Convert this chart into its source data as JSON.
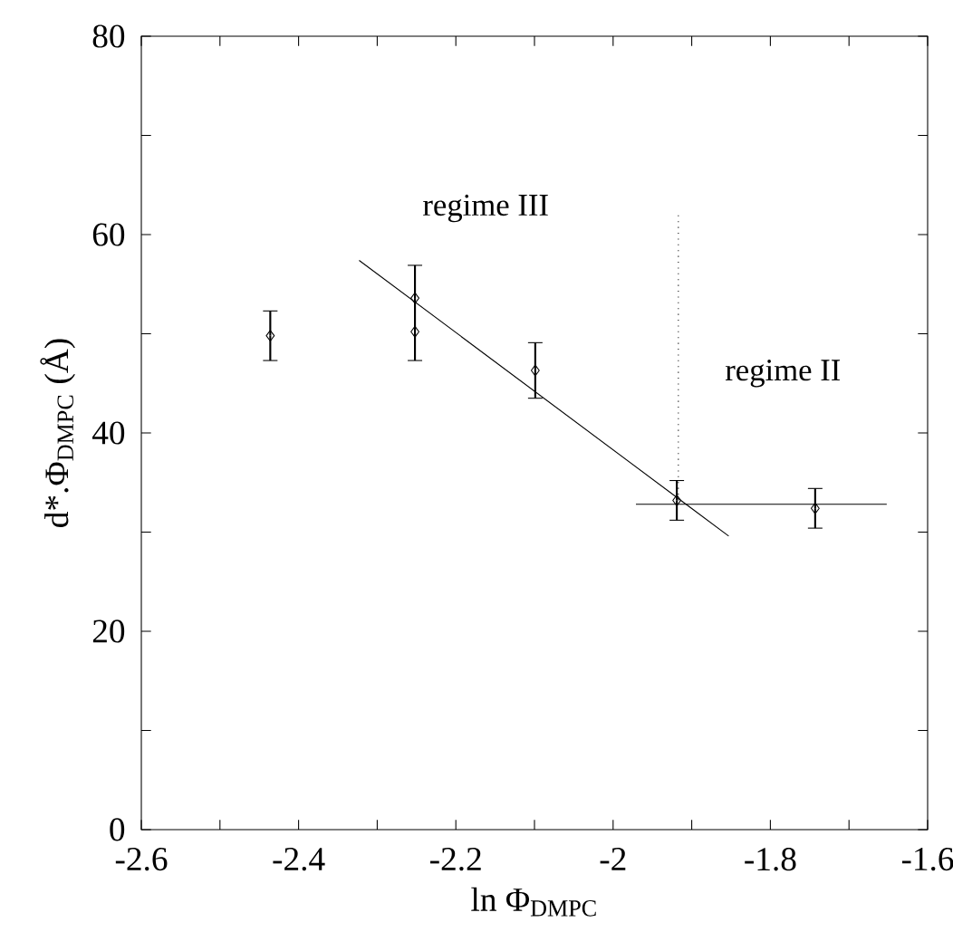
{
  "chart_data": {
    "type": "scatter",
    "xlabel": "ln Φ$_{DMPC}$",
    "ylabel": "d*.Φ$_{DMPC}$ (Å)",
    "xlim": [
      -2.6,
      -1.6
    ],
    "ylim": [
      0,
      80
    ],
    "xticks": [
      -2.6,
      -2.4,
      -2.2,
      -2,
      -1.8,
      -1.6
    ],
    "yticks": [
      0,
      20,
      40,
      60,
      80
    ],
    "marker": "diamond",
    "series": [
      {
        "color": "#000000",
        "x": [
          -2.436,
          -2.252,
          -2.252,
          -2.099,
          -1.919,
          -1.743
        ],
        "values": [
          49.8,
          53.6,
          50.2,
          46.3,
          33.2,
          32.4
        ],
        "errors": [
          2.5,
          [
            47.3,
            56.9
          ],
          null,
          2.8,
          2.0,
          2.0
        ]
      },
      {
        "type": "line",
        "color": "#000000",
        "marker": "none",
        "line_style": "solid",
        "x": [
          -2.323,
          -1.853
        ],
        "values": [
          57.4,
          29.6
        ]
      },
      {
        "type": "line",
        "color": "#000000",
        "marker": "none",
        "line_style": "solid",
        "x": [
          -1.971,
          -1.652
        ],
        "values": [
          32.8,
          32.8
        ]
      },
      {
        "type": "line",
        "color": "#000000",
        "marker": "none",
        "line_style": "dotted",
        "x": [
          -1.917,
          -1.917
        ],
        "values": [
          33.2,
          62.3
        ]
      }
    ],
    "annotations": [
      "regime III",
      "regime II"
    ]
  }
}
